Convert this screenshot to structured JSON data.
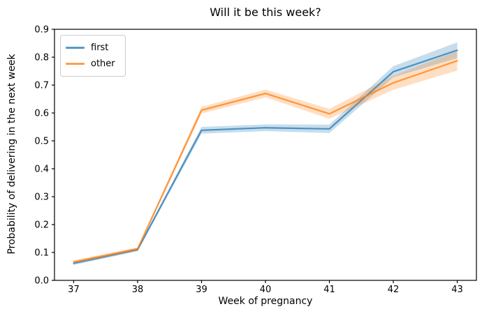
{
  "figure": {
    "background": "#ffffff",
    "spine_color": "#000000",
    "tick_color": "#000000"
  },
  "chart_data": {
    "type": "line",
    "title": "Will it be this week?",
    "xlabel": "Week of pregnancy",
    "ylabel": "Probability of delivering in the next week",
    "x": [
      37,
      38,
      39,
      40,
      41,
      42,
      43
    ],
    "series": [
      {
        "name": "first",
        "color": "#1f77b4",
        "values": [
          0.061,
          0.11,
          0.538,
          0.547,
          0.543,
          0.748,
          0.825
        ],
        "band_lower": [
          0.055,
          0.104,
          0.526,
          0.535,
          0.528,
          0.728,
          0.797
        ],
        "band_upper": [
          0.067,
          0.116,
          0.55,
          0.559,
          0.558,
          0.768,
          0.853
        ]
      },
      {
        "name": "other",
        "color": "#ff7f0e",
        "values": [
          0.066,
          0.113,
          0.61,
          0.67,
          0.597,
          0.708,
          0.787
        ],
        "band_lower": [
          0.06,
          0.107,
          0.598,
          0.656,
          0.579,
          0.683,
          0.752
        ],
        "band_upper": [
          0.072,
          0.119,
          0.622,
          0.684,
          0.615,
          0.733,
          0.822
        ]
      }
    ],
    "xlim": [
      36.7,
      43.3
    ],
    "ylim": [
      0.0,
      0.9
    ],
    "xticks": {
      "values": [
        37,
        38,
        39,
        40,
        41,
        42,
        43
      ],
      "labels": [
        "37",
        "38",
        "39",
        "40",
        "41",
        "42",
        "43"
      ]
    },
    "yticks": {
      "values": [
        0.0,
        0.1,
        0.2,
        0.3,
        0.4,
        0.5,
        0.6,
        0.7,
        0.8,
        0.9
      ],
      "labels": [
        "0.0",
        "0.1",
        "0.2",
        "0.3",
        "0.4",
        "0.5",
        "0.6",
        "0.7",
        "0.8",
        "0.9"
      ]
    },
    "legend": {
      "position": "upper-left",
      "entries": [
        "first",
        "other"
      ]
    },
    "grid": false,
    "line_width": 2.2,
    "line_opacity": 0.75,
    "band_opacity": 0.25
  }
}
